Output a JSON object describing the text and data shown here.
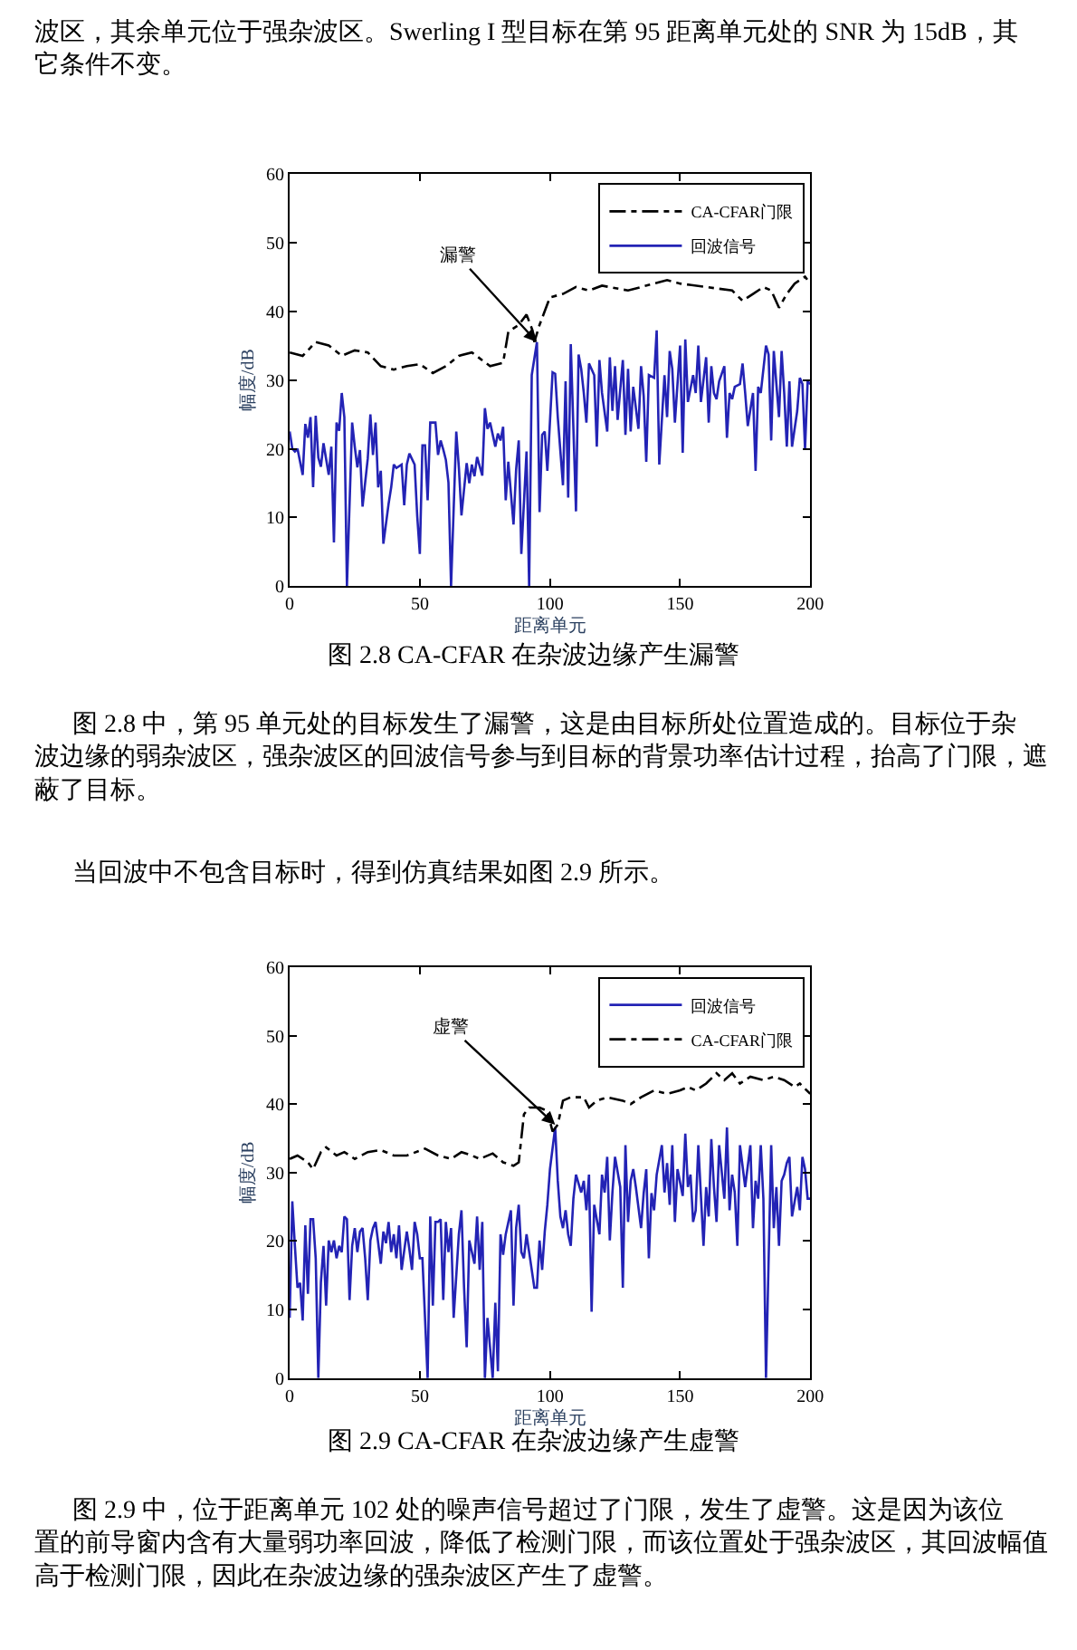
{
  "chart_data": [
    {
      "type": "line",
      "title": "图 2.8 CA-CFAR 在杂波边缘产生漏警",
      "xlabel": "距离单元",
      "ylabel": "幅度/dB",
      "xlim": [
        0,
        200
      ],
      "xticks": [
        0,
        50,
        100,
        150,
        200
      ],
      "ylim": [
        0,
        60
      ],
      "yticks": [
        0,
        10,
        20,
        30,
        40,
        50,
        60
      ],
      "grid": false,
      "legend": "top right",
      "annotations": [
        "波区，其余单元位于强杂波区。Swerling I 型目标在第 95 距离单元处的 SNR 为 15dB，其它条件不变。",
        {
          "text": "漏警",
          "x": 95,
          "y": 35.5
        },
        "图 2.8 中，第 95 单元处的目标发生了漏警，这是由目标所处位置造成的。目标位于杂波边缘的弱杂波区，强杂波区的回波信号参与到目标的背景功率估计过程，抬高了门限，遮蔽了目标。",
        "当回波中不包含目标时，得到仿真结果如图 2.9 所示。"
      ],
      "series": [
        {
          "name": "CA-CFAR门限",
          "color": "#000000",
          "line_style": "dashdot",
          "x": [
            0,
            5,
            10,
            15,
            20,
            25,
            30,
            35,
            40,
            45,
            50,
            55,
            60,
            65,
            70,
            77,
            82,
            84,
            88,
            91,
            93,
            94,
            96,
            98,
            100,
            105,
            110,
            115,
            120,
            130,
            135,
            140,
            145,
            150,
            160,
            170,
            174,
            178,
            182,
            185,
            188,
            191,
            194,
            198,
            200
          ],
          "values": [
            34,
            33.5,
            35.5,
            35,
            33.5,
            34.3,
            34,
            32,
            31.5,
            32,
            32.3,
            31,
            32,
            33.5,
            34,
            32,
            32.5,
            37,
            38,
            39.5,
            37.5,
            35.5,
            38,
            40,
            42,
            42.5,
            43.5,
            43,
            43.7,
            43,
            43.5,
            44,
            44.5,
            44,
            43.5,
            43,
            41.5,
            42.5,
            43.5,
            43,
            40.5,
            42.5,
            44,
            45,
            44
          ]
        },
        {
          "name": "回波信号",
          "color": "#2323b5",
          "line_style": "solid",
          "x": [
            0,
            1,
            2,
            3,
            5,
            6,
            7,
            8,
            9,
            10,
            11,
            12,
            13,
            15,
            16,
            17,
            18,
            19,
            20,
            21,
            22,
            24,
            25,
            26,
            27,
            28,
            30,
            31,
            32,
            33,
            34,
            35,
            36,
            38,
            39,
            40,
            41,
            43,
            44,
            45,
            46,
            48,
            49,
            50,
            51,
            52,
            53,
            54,
            56,
            57,
            58,
            59,
            60,
            61,
            62,
            64,
            65,
            66,
            68,
            69,
            70,
            71,
            72,
            74,
            75,
            76,
            77,
            79,
            80,
            81,
            82,
            83,
            84,
            86,
            87,
            88,
            89,
            91,
            92,
            93,
            95,
            96,
            97,
            98,
            99,
            101,
            102,
            103,
            105,
            106,
            107,
            108,
            110,
            111,
            112,
            113,
            114,
            115,
            117,
            118,
            119,
            120,
            122,
            123,
            124,
            125,
            126,
            128,
            129,
            130,
            131,
            132,
            134,
            135,
            136,
            137,
            138,
            140,
            141,
            142,
            144,
            145,
            146,
            147,
            148,
            150,
            151,
            152,
            153,
            155,
            156,
            157,
            158,
            160,
            161,
            162,
            163,
            164,
            165,
            167,
            168,
            169,
            170,
            171,
            173,
            174,
            175,
            176,
            178,
            179,
            180,
            181,
            183,
            184,
            185,
            186,
            188,
            189,
            190,
            191,
            192,
            193,
            195,
            196,
            197,
            198,
            199,
            200
          ],
          "values": [
            22.5,
            20,
            19.6,
            20,
            16.2,
            23.6,
            21.6,
            24.6,
            14.4,
            24.8,
            18.7,
            17.4,
            20.8,
            16.2,
            20.3,
            6.4,
            23.8,
            22.6,
            28.1,
            24.6,
            0,
            23.8,
            20.3,
            17.3,
            19.8,
            11.6,
            18.6,
            25,
            19.1,
            23.8,
            14.4,
            16.8,
            6.2,
            12,
            14.4,
            17.7,
            17.2,
            17.7,
            11.8,
            17.7,
            19.3,
            17.7,
            10.2,
            4.7,
            20.5,
            20.5,
            12.5,
            23.8,
            23.8,
            19.1,
            21.2,
            19.9,
            18.4,
            15.1,
            0,
            22.5,
            17.3,
            10.3,
            17.9,
            15,
            17.7,
            16,
            18.8,
            16.1,
            25.9,
            22.9,
            23.8,
            20.3,
            22.2,
            21.2,
            23.2,
            12.5,
            18.1,
            9,
            17,
            21.2,
            4.7,
            19.6,
            0,
            30.7,
            35.5,
            10.8,
            22,
            22.5,
            16.8,
            31.1,
            30.9,
            24.6,
            14.7,
            29.8,
            12.9,
            35.2,
            10.9,
            33.7,
            31.6,
            28.1,
            23.8,
            32.4,
            30.7,
            20.3,
            32.9,
            28.1,
            22.5,
            33.3,
            25.5,
            32,
            24.2,
            32.9,
            22,
            31.6,
            22.5,
            29,
            22.9,
            32,
            27.7,
            18.1,
            30.7,
            30.3,
            37.2,
            17.7,
            30.7,
            24.6,
            34.2,
            31.6,
            23.8,
            35,
            19.4,
            35.9,
            26.8,
            30.7,
            28.1,
            35,
            26.8,
            33.3,
            23.8,
            32,
            28.1,
            27.2,
            29.8,
            32,
            21.6,
            28.1,
            27.2,
            29,
            29.4,
            32.4,
            28.1,
            23.3,
            28.1,
            16.8,
            29,
            28.1,
            35,
            33.7,
            21.2,
            34.2,
            24.6,
            34.2,
            28.1,
            20.3,
            29.8,
            20.3,
            25.5,
            30.3,
            29.4,
            19.9,
            29.8,
            29.4
          ]
        }
      ]
    },
    {
      "type": "line",
      "title": "图 2.9 CA-CFAR 在杂波边缘产生虚警",
      "xlabel": "距离单元",
      "ylabel": "幅度/dB",
      "xlim": [
        0,
        200
      ],
      "xticks": [
        0,
        50,
        100,
        150,
        200
      ],
      "ylim": [
        0,
        60
      ],
      "yticks": [
        0,
        10,
        20,
        30,
        40,
        50,
        60
      ],
      "grid": false,
      "legend": "top right",
      "annotations": [
        {
          "text": "虚警",
          "x": 102,
          "y": 37
        },
        "图 2.9 中，位于距离单元 102 处的噪声信号超过了门限，发生了虚警。这是因为该位置的前导窗内含有大量弱功率回波，降低了检测门限，而该位置处于强杂波区，其回波幅值高于检测门限，因此在杂波边缘的强杂波区产生了虚警。"
      ],
      "series": [
        {
          "name": "回波信号",
          "color": "#2323b5",
          "line_style": "solid",
          "x": [
            0,
            1,
            2,
            3,
            4,
            5,
            6,
            7,
            8,
            9,
            10,
            11,
            12,
            13,
            14,
            15,
            16,
            17,
            18,
            19,
            20,
            21,
            22,
            23,
            24,
            25,
            26,
            27,
            28,
            29,
            30,
            31,
            32,
            33,
            35,
            36,
            37,
            38,
            39,
            40,
            41,
            42,
            43,
            45,
            46,
            47,
            48,
            49,
            50,
            51,
            53,
            54,
            55,
            56,
            57,
            58,
            59,
            60,
            61,
            62,
            63,
            65,
            66,
            67,
            68,
            69,
            71,
            72,
            73,
            74,
            75,
            76,
            78,
            79,
            80,
            81,
            82,
            83,
            85,
            86,
            87,
            88,
            89,
            90,
            91,
            92,
            94,
            95,
            96,
            97,
            98,
            99,
            100,
            102,
            103,
            104,
            105,
            106,
            107,
            108,
            109,
            110,
            112,
            113,
            114,
            115,
            116,
            117,
            119,
            120,
            121,
            122,
            123,
            124,
            125,
            127,
            128,
            129,
            130,
            131,
            132,
            133,
            135,
            136,
            137,
            138,
            139,
            140,
            141,
            143,
            144,
            145,
            146,
            147,
            148,
            149,
            151,
            152,
            153,
            154,
            155,
            156,
            157,
            159,
            160,
            161,
            162,
            163,
            164,
            165,
            167,
            168,
            169,
            170,
            171,
            172,
            173,
            175,
            177,
            178,
            179,
            180,
            181,
            182,
            183,
            185,
            186,
            187,
            188,
            189,
            190,
            191,
            192,
            193,
            195,
            196,
            197,
            198,
            199,
            200
          ],
          "values": [
            8.8,
            25.8,
            19.3,
            13.2,
            13.9,
            8.4,
            22.3,
            12.3,
            23.2,
            23.2,
            17.5,
            0,
            14,
            19.3,
            10.6,
            20.1,
            18.4,
            20.1,
            17.5,
            19.3,
            18.4,
            23.6,
            23.2,
            11.4,
            19.3,
            21.9,
            18.4,
            21.4,
            21.9,
            17.5,
            11.4,
            20.1,
            21.9,
            22.8,
            16.7,
            21.4,
            19.7,
            22.8,
            18.4,
            21,
            17.5,
            22.3,
            15.8,
            21.4,
            18.8,
            15.8,
            22.8,
            21,
            17.5,
            17.5,
            0,
            23.6,
            10.6,
            22.8,
            22.8,
            23.2,
            11.4,
            22.8,
            18.4,
            21.9,
            8.8,
            21,
            24.5,
            13.2,
            4.5,
            20.1,
            16.7,
            23.6,
            15.8,
            22.8,
            0,
            8.8,
            0,
            11,
            1,
            21,
            18,
            21,
            24.5,
            10.6,
            21.9,
            25.3,
            18.4,
            17.5,
            21,
            18.4,
            13.2,
            13.2,
            20.1,
            15.8,
            21.4,
            25.3,
            30.5,
            36.6,
            28.8,
            23.6,
            21.9,
            24.5,
            21,
            19.3,
            26.2,
            29.7,
            27.1,
            28.8,
            24.5,
            29.7,
            9.7,
            25.3,
            21,
            29.7,
            27.1,
            32.3,
            20.1,
            27.1,
            32.3,
            27.9,
            13.2,
            34,
            22.8,
            28.8,
            30.5,
            27.9,
            21.9,
            27,
            30.5,
            17.5,
            27,
            24.5,
            29.7,
            34,
            27.1,
            31.4,
            25.3,
            34,
            22.8,
            30.5,
            26.6,
            35.7,
            27.9,
            29.7,
            22.8,
            24.5,
            34,
            19.3,
            27.9,
            23.6,
            34.9,
            27.9,
            22.8,
            34,
            26.2,
            36.6,
            24.5,
            29.7,
            27.1,
            19.3,
            34,
            27.9,
            34,
            21.9,
            28.8,
            26.2,
            34,
            26.2,
            0,
            34,
            21.9,
            27.9,
            19.3,
            28.8,
            29.7,
            31.4,
            32.3,
            23.6,
            27.9,
            24.5,
            32.3,
            30.5,
            26.2,
            26.2
          ]
        },
        {
          "name": "CA-CFAR门限",
          "color": "#000000",
          "line_style": "dashdot",
          "x": [
            0,
            3,
            7,
            9,
            12,
            14,
            18,
            21,
            25,
            30,
            35,
            40,
            45,
            52,
            57,
            62,
            66,
            70,
            73,
            78,
            82,
            86,
            88,
            90,
            92,
            96,
            99,
            101,
            103,
            105,
            108,
            113,
            115,
            118,
            122,
            128,
            131,
            135,
            140,
            145,
            150,
            153,
            156,
            160,
            164,
            167,
            170,
            173,
            177,
            182,
            186,
            190,
            194,
            196,
            200
          ],
          "values": [
            32,
            32.5,
            31.5,
            30.5,
            33,
            33.7,
            32.5,
            33,
            32,
            33,
            33.3,
            32.5,
            32.5,
            33.5,
            32.5,
            32,
            33,
            32.5,
            32,
            32.8,
            31.5,
            31,
            31.5,
            38.5,
            39.5,
            39.5,
            39,
            36,
            37,
            40.5,
            41,
            41,
            39.5,
            40.5,
            41,
            40.5,
            40,
            41,
            42,
            41.5,
            42,
            42.5,
            42,
            43,
            44.5,
            43.5,
            44.5,
            43,
            44,
            43.5,
            44,
            43.5,
            42.5,
            43,
            41.5
          ]
        }
      ]
    }
  ]
}
